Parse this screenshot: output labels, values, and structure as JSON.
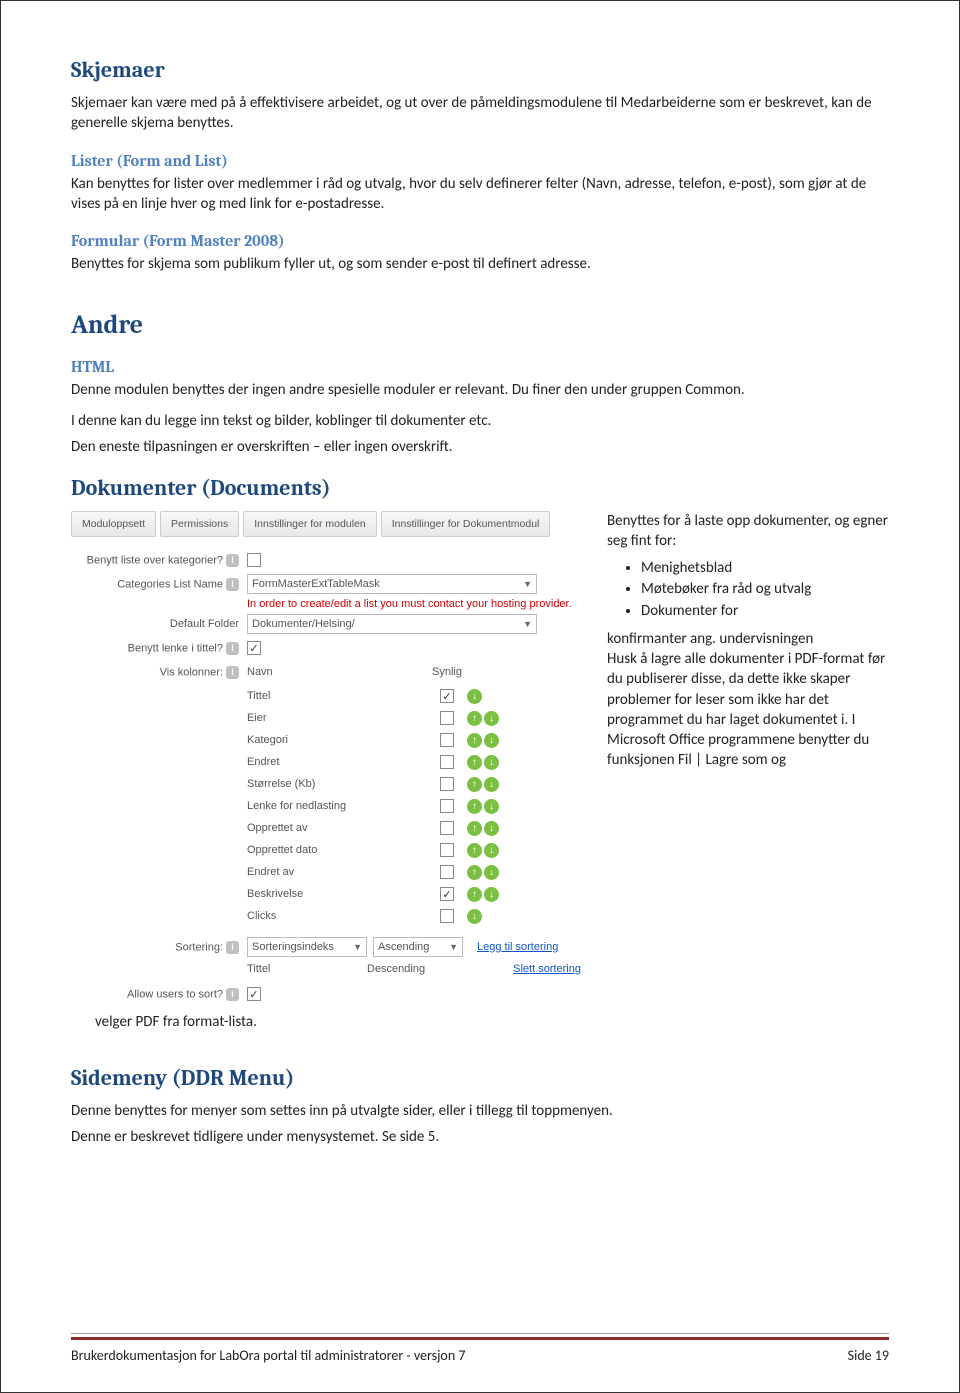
{
  "sections": {
    "skjemaer": {
      "title": "Skjemaer",
      "intro": "Skjemaer kan være med på å effektivisere arbeidet, og ut over de påmeldingsmodulene til Medarbeiderne som er beskrevet, kan de generelle skjema benyttes."
    },
    "lister": {
      "title": "Lister (Form and List)",
      "body": "Kan benyttes for lister over medlemmer i råd og utvalg, hvor du selv definerer felter (Navn, adresse, telefon, e-post), som gjør at de vises på en linje hver og med link for e-postadresse."
    },
    "formular": {
      "title": "Formular (Form Master 2008)",
      "body": "Benyttes for skjema som publikum fyller ut, og som sender e-post til definert adresse."
    },
    "andre": {
      "title": "Andre"
    },
    "html": {
      "title": "HTML",
      "p1": "Denne modulen benyttes der ingen andre spesielle moduler er relevant. Du finer den under gruppen Common.",
      "p2": "I denne kan du legge inn tekst og bilder, koblinger til dokumenter etc.",
      "p3": "Den eneste tilpasningen er overskriften – eller ingen overskrift."
    },
    "dokumenter": {
      "title": "Dokumenter (Documents)",
      "right_intro": "Benyttes for å laste opp dokumenter, og egner seg fint for:",
      "bullets": [
        "Menighetsblad",
        "Møtebøker fra råd og utvalg",
        "Dokumenter for"
      ],
      "right_body": "konfirmanter ang. undervisningen\nHusk å lagre alle dokumenter i PDF-format før du publiserer disse, da dette ikke skaper problemer for leser som ikke har det programmet du har laget dokumentet i. I Microsoft Office programmene benytter du funksjonen Fil | Lagre som og",
      "caption_below": "velger PDF fra format-lista."
    },
    "sidemeny": {
      "title": "Sidemeny (DDR Menu)",
      "p1": "Denne benyttes for menyer som settes inn på utvalgte sider, eller i tillegg til toppmenyen.",
      "p2": "Denne er beskrevet tidligere under menysystemet. Se side 5."
    }
  },
  "settings": {
    "tabs": [
      "Moduloppsett",
      "Permissions",
      "Innstillinger for modulen",
      "Innstillinger for Dokumentmodul"
    ],
    "labels": {
      "cat_list": "Benytt liste over kategorier?",
      "cat_name": "Categories List Name",
      "default_folder": "Default Folder",
      "link_title": "Benytt lenke i tittel?",
      "vis_kolonner": "Vis kolonner:",
      "sortering": "Sortering:",
      "allow_sort": "Allow users to sort?"
    },
    "cat_name_value": "FormMasterExtTableMask",
    "red_note": "In order to create/edit a list you must contact your hosting provider.",
    "default_folder_value": "Dokumenter/Helsing/",
    "col_header_name": "Navn",
    "col_header_synlig": "Synlig",
    "columns": [
      {
        "name": "Tittel",
        "checked": true,
        "icons": 1
      },
      {
        "name": "Eier",
        "checked": false,
        "icons": 2
      },
      {
        "name": "Kategori",
        "checked": false,
        "icons": 2
      },
      {
        "name": "Endret",
        "checked": false,
        "icons": 2
      },
      {
        "name": "Størrelse (Kb)",
        "checked": false,
        "icons": 2
      },
      {
        "name": "Lenke for nedlasting",
        "checked": false,
        "icons": 2
      },
      {
        "name": "Opprettet av",
        "checked": false,
        "icons": 2
      },
      {
        "name": "Opprettet dato",
        "checked": false,
        "icons": 2
      },
      {
        "name": "Endret av",
        "checked": false,
        "icons": 2
      },
      {
        "name": "Beskrivelse",
        "checked": true,
        "icons": 2
      },
      {
        "name": "Clicks",
        "checked": false,
        "icons": 1
      }
    ],
    "sort1_field": "Sorteringsindeks",
    "sort1_dir": "Ascending",
    "sort_add_link": "Legg til sortering",
    "sort2_field": "Tittel",
    "sort2_dir": "Descending",
    "sort_del_link": "Slett sortering"
  },
  "footer": {
    "left": "Brukerdokumentasjon for LabOra portal til administratorer - versjon 7",
    "right": "Side 19"
  },
  "colors": {
    "heading1": "#1f497d",
    "heading2": "#4f81bd",
    "footer_rule": "#8b2a2a",
    "green_dot": "#7bc043",
    "link": "#1155cc",
    "red": "#c00"
  }
}
